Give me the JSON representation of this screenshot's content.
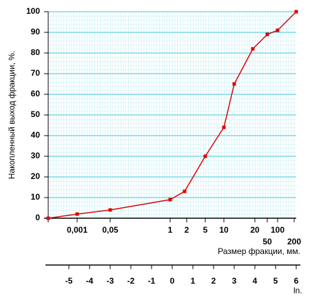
{
  "chart_data": {
    "type": "line",
    "y_label": "Накопленный выход фракции, %.",
    "x_label": "Размер фракции, мм.",
    "x2_label": "ln.",
    "x": [
      -6,
      -4.6,
      -3,
      -0.1,
      0.6,
      1.6,
      2.5,
      3,
      3.9,
      4.6,
      5.1,
      6
    ],
    "series": [
      {
        "name": "Накопленный выход",
        "color": "#e00000",
        "values": [
          0,
          2,
          4,
          9,
          13,
          30,
          44,
          65,
          82,
          89,
          91,
          100
        ]
      }
    ],
    "xlim": [
      -6,
      6
    ],
    "ylim": [
      0,
      100
    ],
    "yticks": [
      0,
      10,
      20,
      30,
      40,
      50,
      60,
      70,
      80,
      90,
      100
    ],
    "size_ticks": [
      {
        "value": -4.6,
        "label": "0,001"
      },
      {
        "value": -3,
        "label": "0,05"
      },
      {
        "value": -0.1,
        "label": "1"
      },
      {
        "value": 0.7,
        "label": "2"
      },
      {
        "value": 1.6,
        "label": "5"
      },
      {
        "value": 2.5,
        "label": "10"
      },
      {
        "value": 4,
        "label": "20"
      },
      {
        "value": 4.6,
        "label": "50"
      },
      {
        "value": 5.1,
        "label": "100"
      },
      {
        "value": 5.9,
        "label": "200"
      }
    ],
    "xticks": [
      -5,
      -4,
      -3,
      -2,
      -1,
      0,
      1,
      2,
      3,
      4,
      5,
      6
    ],
    "grid": true
  }
}
